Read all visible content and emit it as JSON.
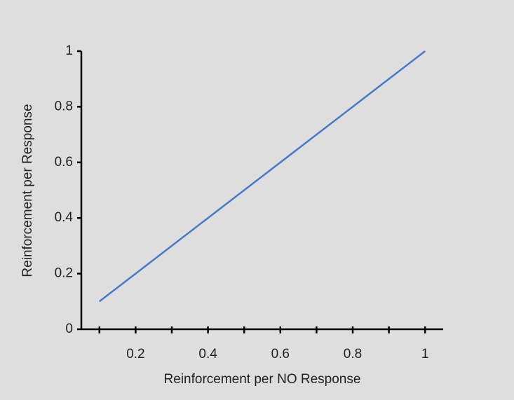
{
  "chart_data": {
    "type": "line",
    "x_label": "Reinforcement per NO Response",
    "y_label": "Reinforcement per Response",
    "x": [
      0.1,
      1
    ],
    "series": [
      {
        "color": "#4a78c8",
        "values": [
          0.1,
          1
        ]
      }
    ],
    "xlim": [
      0.05,
      1.05
    ],
    "xticks": [
      0.2,
      0.4,
      0.6,
      0.8,
      1
    ],
    "xminorticks": [
      0.1,
      0.3,
      0.5,
      0.7,
      0.9
    ],
    "ylim": [
      0,
      1
    ],
    "yticks": [
      0,
      0.2,
      0.4,
      0.6,
      0.8,
      1
    ]
  }
}
